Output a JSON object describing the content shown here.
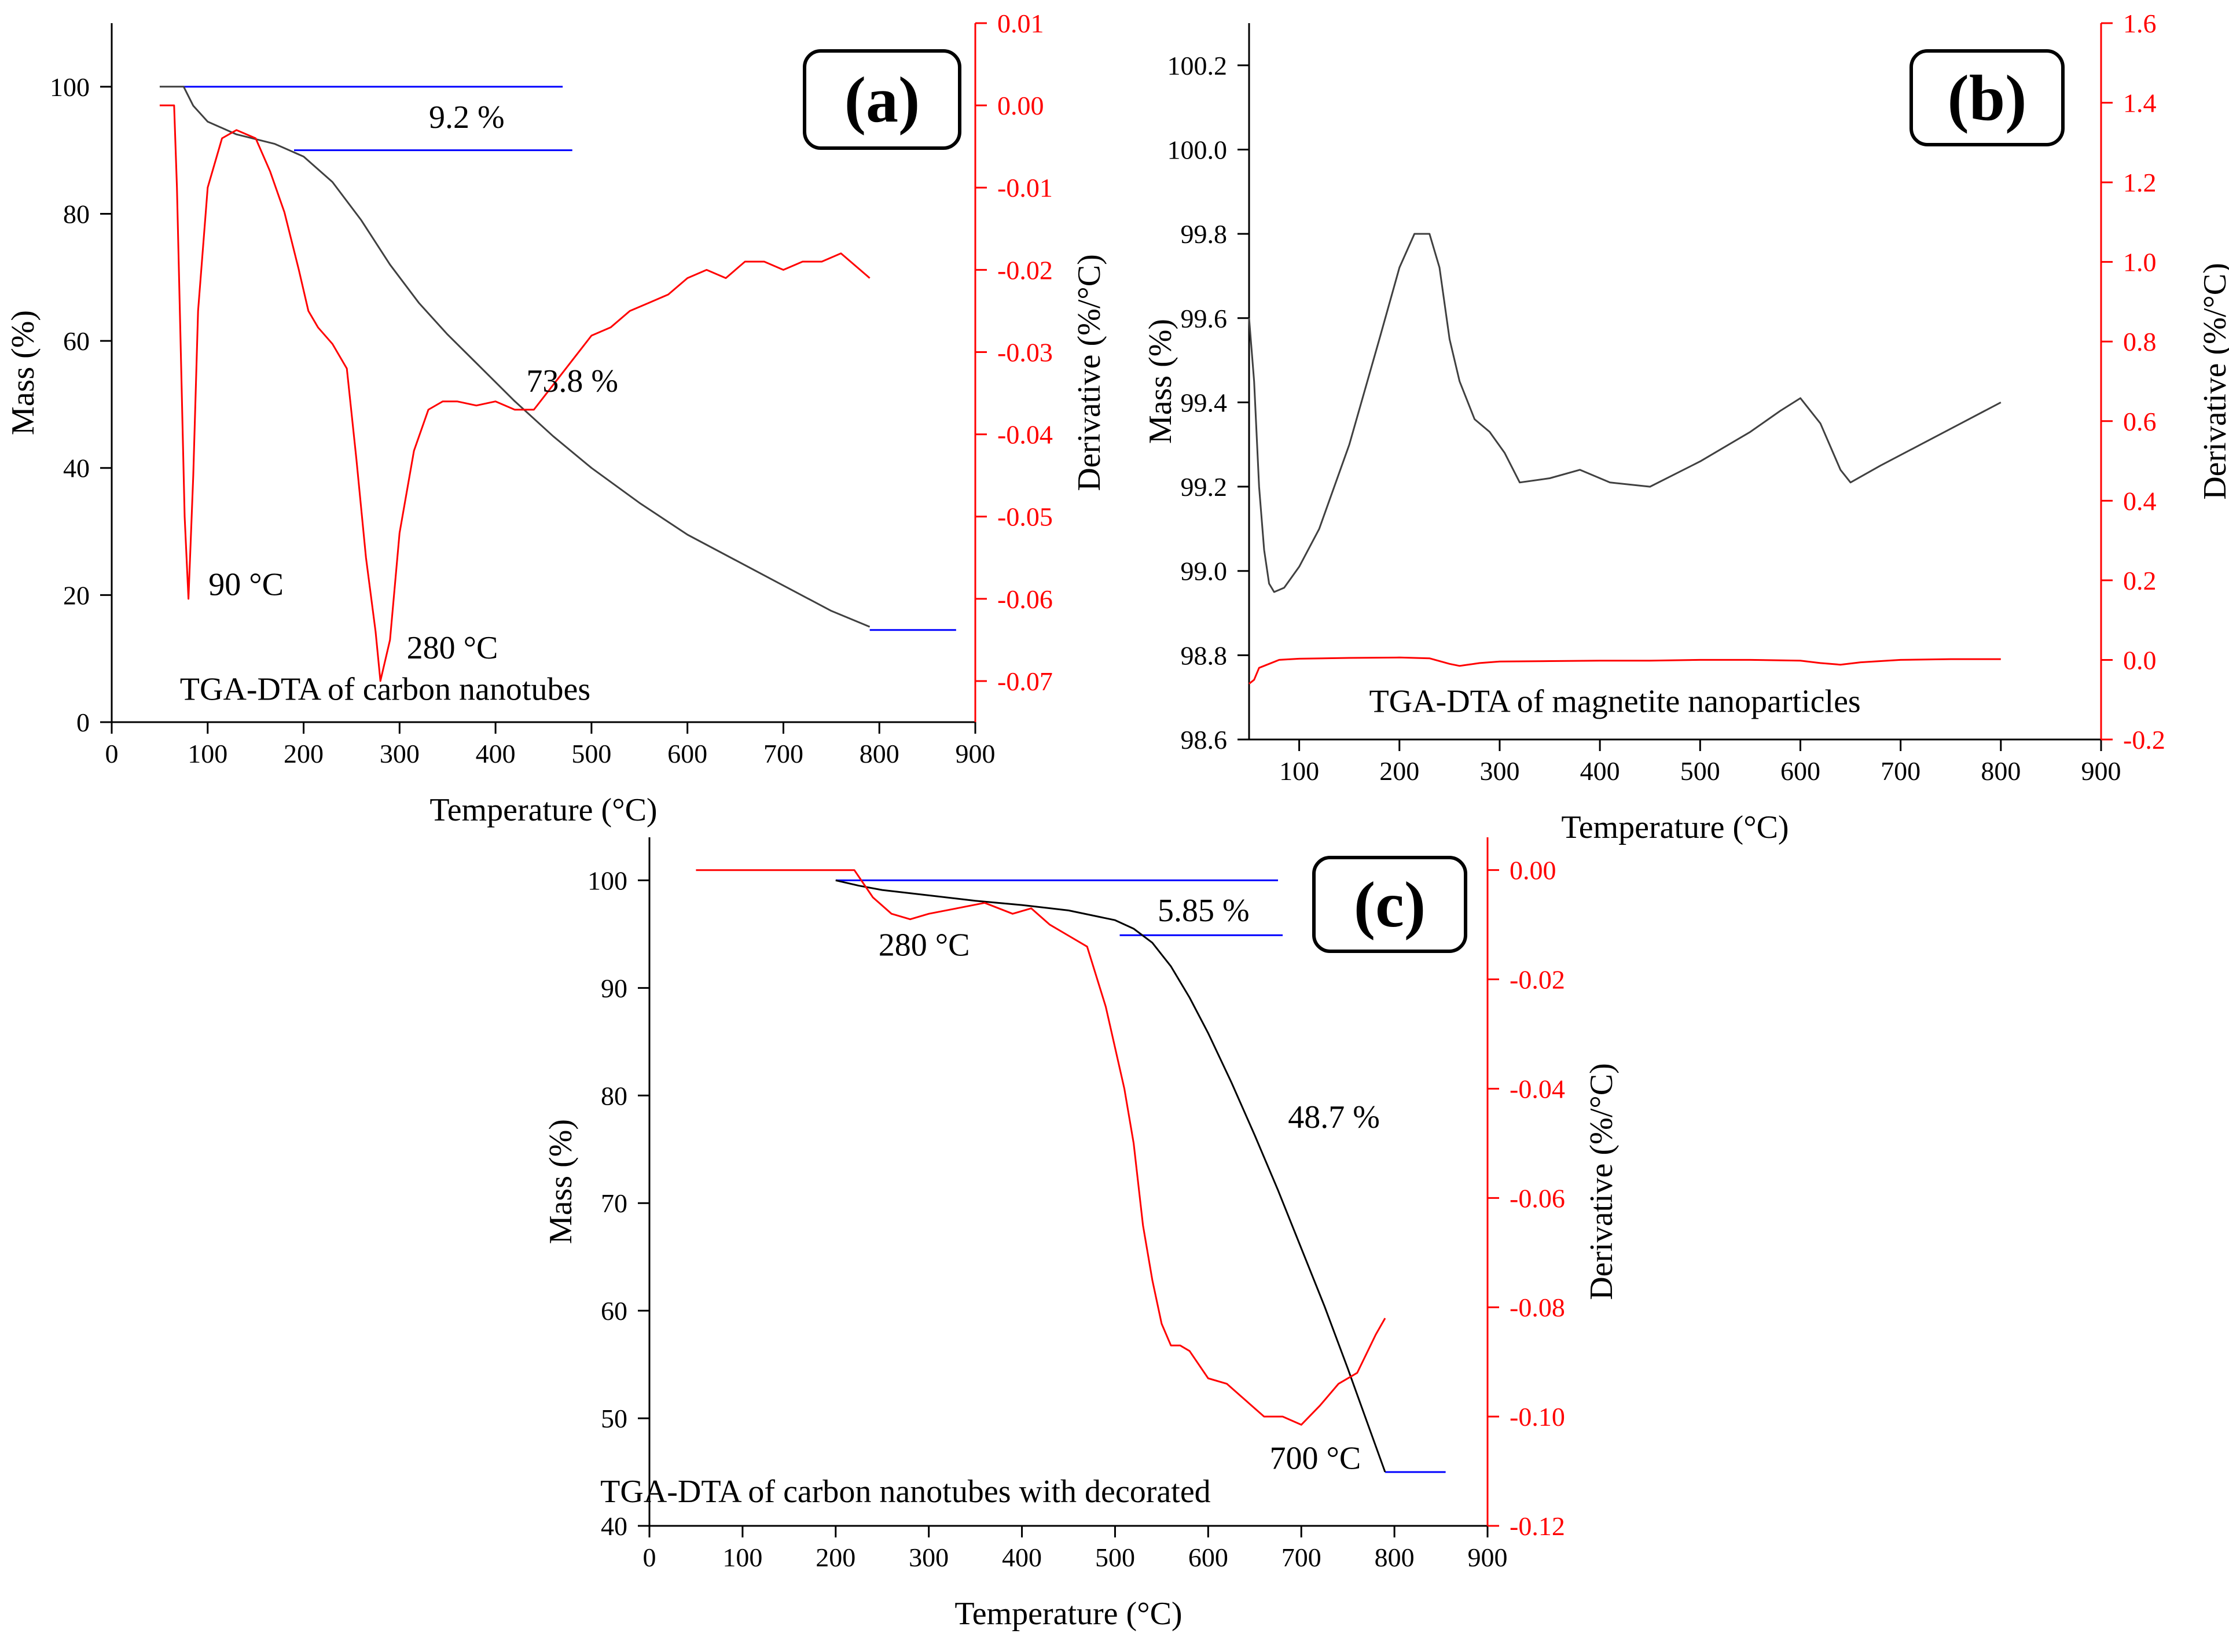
{
  "colors": {
    "mass": "#404040",
    "mass_c": "#000000",
    "deriv": "#ff0000",
    "guide": "#0000ff",
    "axis": "#000000"
  },
  "chart_data": [
    {
      "id": "a",
      "type": "line",
      "panel_label": "(a)",
      "title": "TGA-DTA of carbon nanotubes",
      "xlabel": "Temperature (°C)",
      "ylabel": "Mass (%)",
      "y2label": "Derivative (%/°C)",
      "xlim": [
        0,
        900
      ],
      "ylim": [
        0,
        110
      ],
      "y2lim": [
        -0.075,
        0.01
      ],
      "xticks": [
        0,
        100,
        200,
        300,
        400,
        500,
        600,
        700,
        800,
        900
      ],
      "yticks": [
        0,
        20,
        40,
        60,
        80,
        100
      ],
      "y2ticks": [
        0.01,
        0.0,
        -0.01,
        -0.02,
        -0.03,
        -0.04,
        -0.05,
        -0.06,
        -0.07
      ],
      "y2tick_labels": [
        "0.01",
        "0.00",
        "-0.01",
        "-0.02",
        "-0.03",
        "-0.04",
        "-0.05",
        "-0.06",
        "-0.07"
      ],
      "series": [
        {
          "name": "Mass",
          "axis": "left",
          "color": "#404040",
          "x": [
            50,
            75,
            85,
            100,
            130,
            170,
            200,
            230,
            260,
            290,
            320,
            350,
            380,
            420,
            460,
            500,
            550,
            600,
            650,
            700,
            750,
            790
          ],
          "y": [
            100,
            100,
            97,
            94.5,
            92.5,
            91,
            89,
            85,
            79,
            72,
            66,
            61,
            56.5,
            50.5,
            45,
            40,
            34.5,
            29.5,
            25.5,
            21.5,
            17.5,
            15
          ]
        },
        {
          "name": "Derivative",
          "axis": "right",
          "color": "#ff0000",
          "x": [
            50,
            65,
            68,
            72,
            76,
            80,
            85,
            90,
            100,
            115,
            130,
            150,
            165,
            180,
            195,
            205,
            215,
            230,
            245,
            255,
            265,
            275,
            280,
            290,
            300,
            315,
            330,
            345,
            360,
            380,
            400,
            420,
            440,
            460,
            480,
            500,
            520,
            540,
            560,
            580,
            600,
            620,
            640,
            660,
            680,
            700,
            720,
            740,
            760,
            770,
            780,
            790
          ],
          "y": [
            0,
            0,
            -0.01,
            -0.03,
            -0.05,
            -0.06,
            -0.045,
            -0.025,
            -0.01,
            -0.004,
            -0.003,
            -0.004,
            -0.008,
            -0.013,
            -0.02,
            -0.025,
            -0.027,
            -0.029,
            -0.032,
            -0.043,
            -0.055,
            -0.064,
            -0.07,
            -0.065,
            -0.052,
            -0.042,
            -0.037,
            -0.036,
            -0.036,
            -0.0365,
            -0.036,
            -0.037,
            -0.037,
            -0.034,
            -0.031,
            -0.028,
            -0.027,
            -0.025,
            -0.024,
            -0.023,
            -0.021,
            -0.02,
            -0.021,
            -0.019,
            -0.019,
            -0.02,
            -0.019,
            -0.019,
            -0.018,
            -0.019,
            -0.02,
            -0.021
          ]
        }
      ],
      "guides": [
        {
          "x": [
            75,
            470
          ],
          "y": 100
        },
        {
          "x": [
            190,
            480
          ],
          "y": 90
        },
        {
          "x": [
            790,
            880
          ],
          "y": 14.5
        }
      ],
      "annotations": [
        {
          "text": "9.2 %",
          "x": 370,
          "y": 93.5
        },
        {
          "text": "73.8 %",
          "x": 480,
          "y": 52
        },
        {
          "text": "90 °C",
          "x": 140,
          "y": 20
        },
        {
          "text": "280 °C",
          "x": 355,
          "y": 10
        },
        {
          "text": "TGA-DTA of carbon nanotubes",
          "x": 285,
          "y": 3.5
        }
      ]
    },
    {
      "id": "b",
      "type": "line",
      "panel_label": "(b)",
      "title": "TGA-DTA of magnetite nanoparticles",
      "xlabel": "Temperature (°C)",
      "ylabel": "Mass (%)",
      "y2label": "Derivative (%/°C)",
      "xlim": [
        50,
        900
      ],
      "ylim": [
        98.6,
        100.3
      ],
      "y2lim": [
        -0.2,
        1.6
      ],
      "xticks": [
        100,
        200,
        300,
        400,
        500,
        600,
        700,
        800,
        900
      ],
      "yticks": [
        98.6,
        98.8,
        99.0,
        99.2,
        99.4,
        99.6,
        99.8,
        100.0,
        100.2
      ],
      "ytick_labels": [
        "98.6",
        "98.8",
        "99.0",
        "99.2",
        "99.4",
        "99.6",
        "99.8",
        "100.0",
        "100.2"
      ],
      "y2ticks": [
        -0.2,
        0.0,
        0.2,
        0.4,
        0.6,
        0.8,
        1.0,
        1.2,
        1.4,
        1.6
      ],
      "y2tick_labels": [
        "-0.2",
        "0.0",
        "0.2",
        "0.4",
        "0.6",
        "0.8",
        "1.0",
        "1.2",
        "1.4",
        "1.6"
      ],
      "series": [
        {
          "name": "Mass",
          "axis": "left",
          "color": "#404040",
          "x": [
            50,
            55,
            60,
            65,
            70,
            75,
            85,
            100,
            120,
            150,
            180,
            200,
            215,
            230,
            240,
            250,
            260,
            275,
            290,
            305,
            320,
            350,
            380,
            410,
            450,
            500,
            550,
            580,
            600,
            620,
            640,
            650,
            680,
            720,
            760,
            800
          ],
          "y": [
            99.6,
            99.45,
            99.2,
            99.05,
            98.97,
            98.95,
            98.96,
            99.01,
            99.1,
            99.3,
            99.55,
            99.72,
            99.8,
            99.8,
            99.72,
            99.55,
            99.45,
            99.36,
            99.33,
            99.28,
            99.21,
            99.22,
            99.24,
            99.21,
            99.2,
            99.26,
            99.33,
            99.38,
            99.41,
            99.35,
            99.24,
            99.21,
            99.25,
            99.3,
            99.35,
            99.4
          ]
        },
        {
          "name": "Derivative",
          "axis": "right",
          "color": "#ff0000",
          "x": [
            50,
            55,
            60,
            70,
            80,
            100,
            150,
            200,
            230,
            250,
            260,
            280,
            300,
            350,
            400,
            450,
            500,
            550,
            600,
            620,
            640,
            660,
            680,
            700,
            750,
            800
          ],
          "y": [
            -0.06,
            -0.05,
            -0.02,
            -0.01,
            0.0,
            0.003,
            0.005,
            0.006,
            0.004,
            -0.01,
            -0.015,
            -0.008,
            -0.004,
            -0.003,
            -0.002,
            -0.002,
            0.0,
            0.0,
            -0.002,
            -0.008,
            -0.012,
            -0.006,
            -0.003,
            0.0,
            0.002,
            0.002
          ]
        }
      ],
      "guides": [],
      "annotations": [
        {
          "text": "TGA-DTA of magnetite nanoparticles",
          "x": 415,
          "y": 98.665
        }
      ]
    },
    {
      "id": "c",
      "type": "line",
      "panel_label": "(c)",
      "title": "TGA-DTA of carbon nanotubes with decorated",
      "xlabel": "Temperature (°C)",
      "ylabel": "Mass (%)",
      "y2label": "Derivative (%/°C)",
      "xlim": [
        0,
        900
      ],
      "ylim": [
        40,
        104
      ],
      "y2lim": [
        -0.12,
        0.006
      ],
      "xticks": [
        0,
        100,
        200,
        300,
        400,
        500,
        600,
        700,
        800,
        900
      ],
      "yticks": [
        40,
        50,
        60,
        70,
        80,
        90,
        100
      ],
      "y2ticks": [
        0.0,
        -0.02,
        -0.04,
        -0.06,
        -0.08,
        -0.1,
        -0.12
      ],
      "y2tick_labels": [
        "0.00",
        "-0.02",
        "-0.04",
        "-0.06",
        "-0.08",
        "-0.10",
        "-0.12"
      ],
      "series": [
        {
          "name": "Mass",
          "axis": "left",
          "color": "#000000",
          "x": [
            200,
            225,
            250,
            300,
            350,
            400,
            450,
            500,
            520,
            540,
            560,
            580,
            600,
            625,
            650,
            675,
            700,
            725,
            750,
            770,
            790
          ],
          "y": [
            100,
            99.5,
            99.1,
            98.6,
            98.1,
            97.7,
            97.2,
            96.3,
            95.5,
            94.2,
            92,
            89.1,
            85.8,
            81.2,
            76.3,
            71.2,
            65.8,
            60.4,
            54.6,
            49.8,
            45
          ]
        },
        {
          "name": "Derivative",
          "axis": "right",
          "color": "#ff0000",
          "x": [
            50,
            200,
            220,
            240,
            260,
            280,
            300,
            330,
            360,
            390,
            410,
            430,
            450,
            470,
            490,
            510,
            520,
            530,
            540,
            550,
            560,
            570,
            580,
            600,
            620,
            640,
            660,
            680,
            700,
            720,
            740,
            760,
            780,
            790
          ],
          "y": [
            0,
            0,
            0,
            -0.005,
            -0.008,
            -0.009,
            -0.008,
            -0.007,
            -0.006,
            -0.008,
            -0.007,
            -0.01,
            -0.012,
            -0.014,
            -0.025,
            -0.04,
            -0.05,
            -0.065,
            -0.075,
            -0.083,
            -0.087,
            -0.087,
            -0.088,
            -0.093,
            -0.094,
            -0.097,
            -0.1,
            -0.1,
            -0.1015,
            -0.098,
            -0.094,
            -0.092,
            -0.085,
            -0.082
          ]
        }
      ],
      "guides": [
        {
          "x": [
            200,
            675
          ],
          "y": 100
        },
        {
          "x": [
            505,
            680
          ],
          "y": 94.9
        },
        {
          "x": [
            790,
            855
          ],
          "y": 45
        }
      ],
      "annotations": [
        {
          "text": "5.85 %",
          "x": 595,
          "y": 96.2
        },
        {
          "text": "280 °C",
          "x": 295,
          "y": 93
        },
        {
          "text": "48.7 %",
          "x": 735,
          "y": 77
        },
        {
          "text": "700 °C",
          "x": 715,
          "y": 45.3
        },
        {
          "text": "TGA-DTA of carbon nanotubes with decorated",
          "x": 275,
          "y": 42.2
        }
      ]
    }
  ]
}
